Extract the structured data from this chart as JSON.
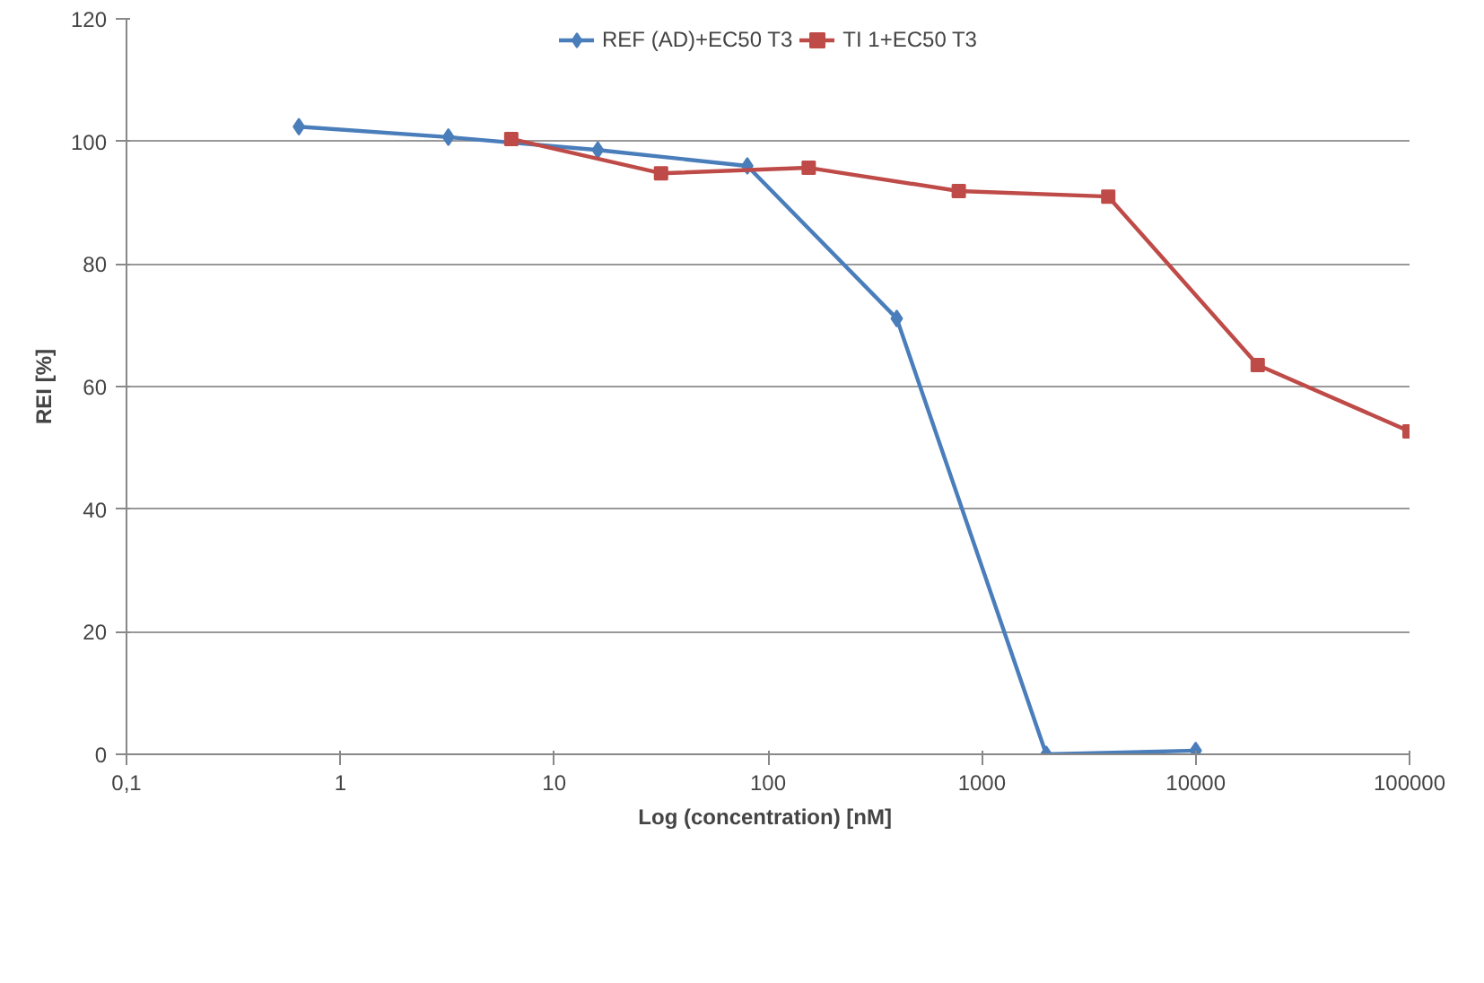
{
  "chart_data": {
    "type": "line",
    "xlabel": "Log (concentration)  [nM]",
    "ylabel": "REI [%]",
    "log": "x",
    "xlim": [
      0.1,
      100000
    ],
    "xticks": [
      {
        "value": 0.1,
        "label": "0,1"
      },
      1,
      10,
      100,
      1000,
      10000,
      100000
    ],
    "ylim": [
      0,
      120
    ],
    "yticks": [
      0,
      20,
      40,
      60,
      80,
      100,
      120
    ],
    "grid": "y",
    "legend": "top",
    "line_style": "solid",
    "series": [
      {
        "name": "REF (AD)+EC50 T3",
        "color": "#4a7ebb",
        "marker": "diamond",
        "x": [
          0.64,
          3.2,
          16,
          80,
          400,
          2000,
          10000
        ],
        "values": [
          102.4,
          100.7,
          98.6,
          96,
          71.1,
          0,
          0.6
        ]
      },
      {
        "name": "TI 1+EC50 T3",
        "color": "#be4b48",
        "marker": "square",
        "x": [
          6.3,
          31.6,
          155,
          780,
          3900,
          19500,
          100000
        ],
        "values": [
          100.4,
          94.8,
          95.7,
          91.9,
          91,
          63.5,
          52.7
        ]
      }
    ]
  }
}
